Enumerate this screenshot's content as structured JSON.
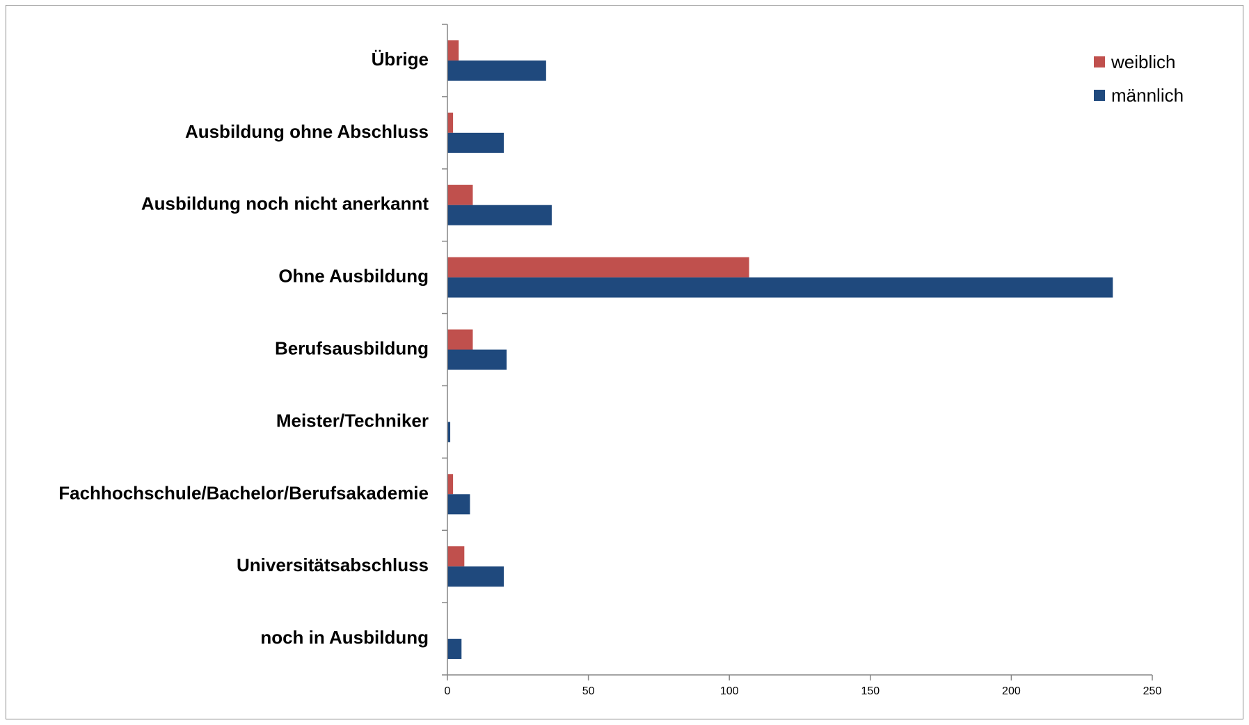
{
  "chart_data": {
    "type": "bar",
    "orientation": "horizontal",
    "categories": [
      "noch in Ausbildung",
      "Universitätsabschluss",
      "Fachhochschule/Bachelor/Berufsakademie",
      "Meister/Techniker",
      "Berufsausbildung",
      "Ohne Ausbildung",
      "Ausbildung noch nicht anerkannt",
      "Ausbildung ohne Abschluss",
      "Übrige"
    ],
    "series": [
      {
        "name": "männlich",
        "color": "#1f497d",
        "values": [
          5,
          20,
          8,
          1,
          21,
          236,
          37,
          20,
          35
        ]
      },
      {
        "name": "weiblich",
        "color": "#c0504d",
        "values": [
          0,
          6,
          2,
          0,
          9,
          107,
          9,
          2,
          4
        ]
      }
    ],
    "xlim": [
      0,
      250
    ],
    "xticks": [
      0,
      50,
      100,
      150,
      200,
      250
    ],
    "legend": {
      "position": "top-right",
      "entries": [
        {
          "label": "weiblich",
          "color": "#c0504d"
        },
        {
          "label": "männlich",
          "color": "#1f497d"
        }
      ]
    },
    "grid": false
  }
}
